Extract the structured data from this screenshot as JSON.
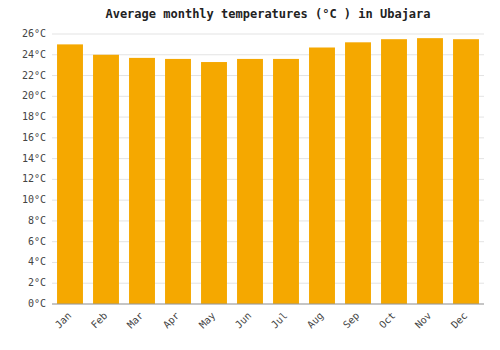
{
  "chart_data": {
    "type": "bar",
    "title": "Average monthly temperatures (°C ) in Ubajara",
    "categories": [
      "Jan",
      "Feb",
      "Mar",
      "Apr",
      "May",
      "Jun",
      "Jul",
      "Aug",
      "Sep",
      "Oct",
      "Nov",
      "Dec"
    ],
    "values": [
      25.0,
      24.0,
      23.7,
      23.6,
      23.3,
      23.6,
      23.6,
      24.7,
      25.2,
      25.5,
      25.6,
      25.5
    ],
    "color": "#F5A800",
    "ylim": [
      0,
      26
    ],
    "yticks": [
      {
        "value": 0,
        "label": "0°C"
      },
      {
        "value": 2,
        "label": "2°C"
      },
      {
        "value": 4,
        "label": "4°C"
      },
      {
        "value": 6,
        "label": "6°C"
      },
      {
        "value": 8,
        "label": "8°C"
      },
      {
        "value": 10,
        "label": "10°C"
      },
      {
        "value": 12,
        "label": "12°C"
      },
      {
        "value": 14,
        "label": "14°C"
      },
      {
        "value": 16,
        "label": "16°C"
      },
      {
        "value": 18,
        "label": "18°C"
      },
      {
        "value": 20,
        "label": "20°C"
      },
      {
        "value": 22,
        "label": "22°C"
      },
      {
        "value": 24,
        "label": "24°C"
      },
      {
        "value": 26,
        "label": "26°C"
      }
    ],
    "grid": true
  }
}
